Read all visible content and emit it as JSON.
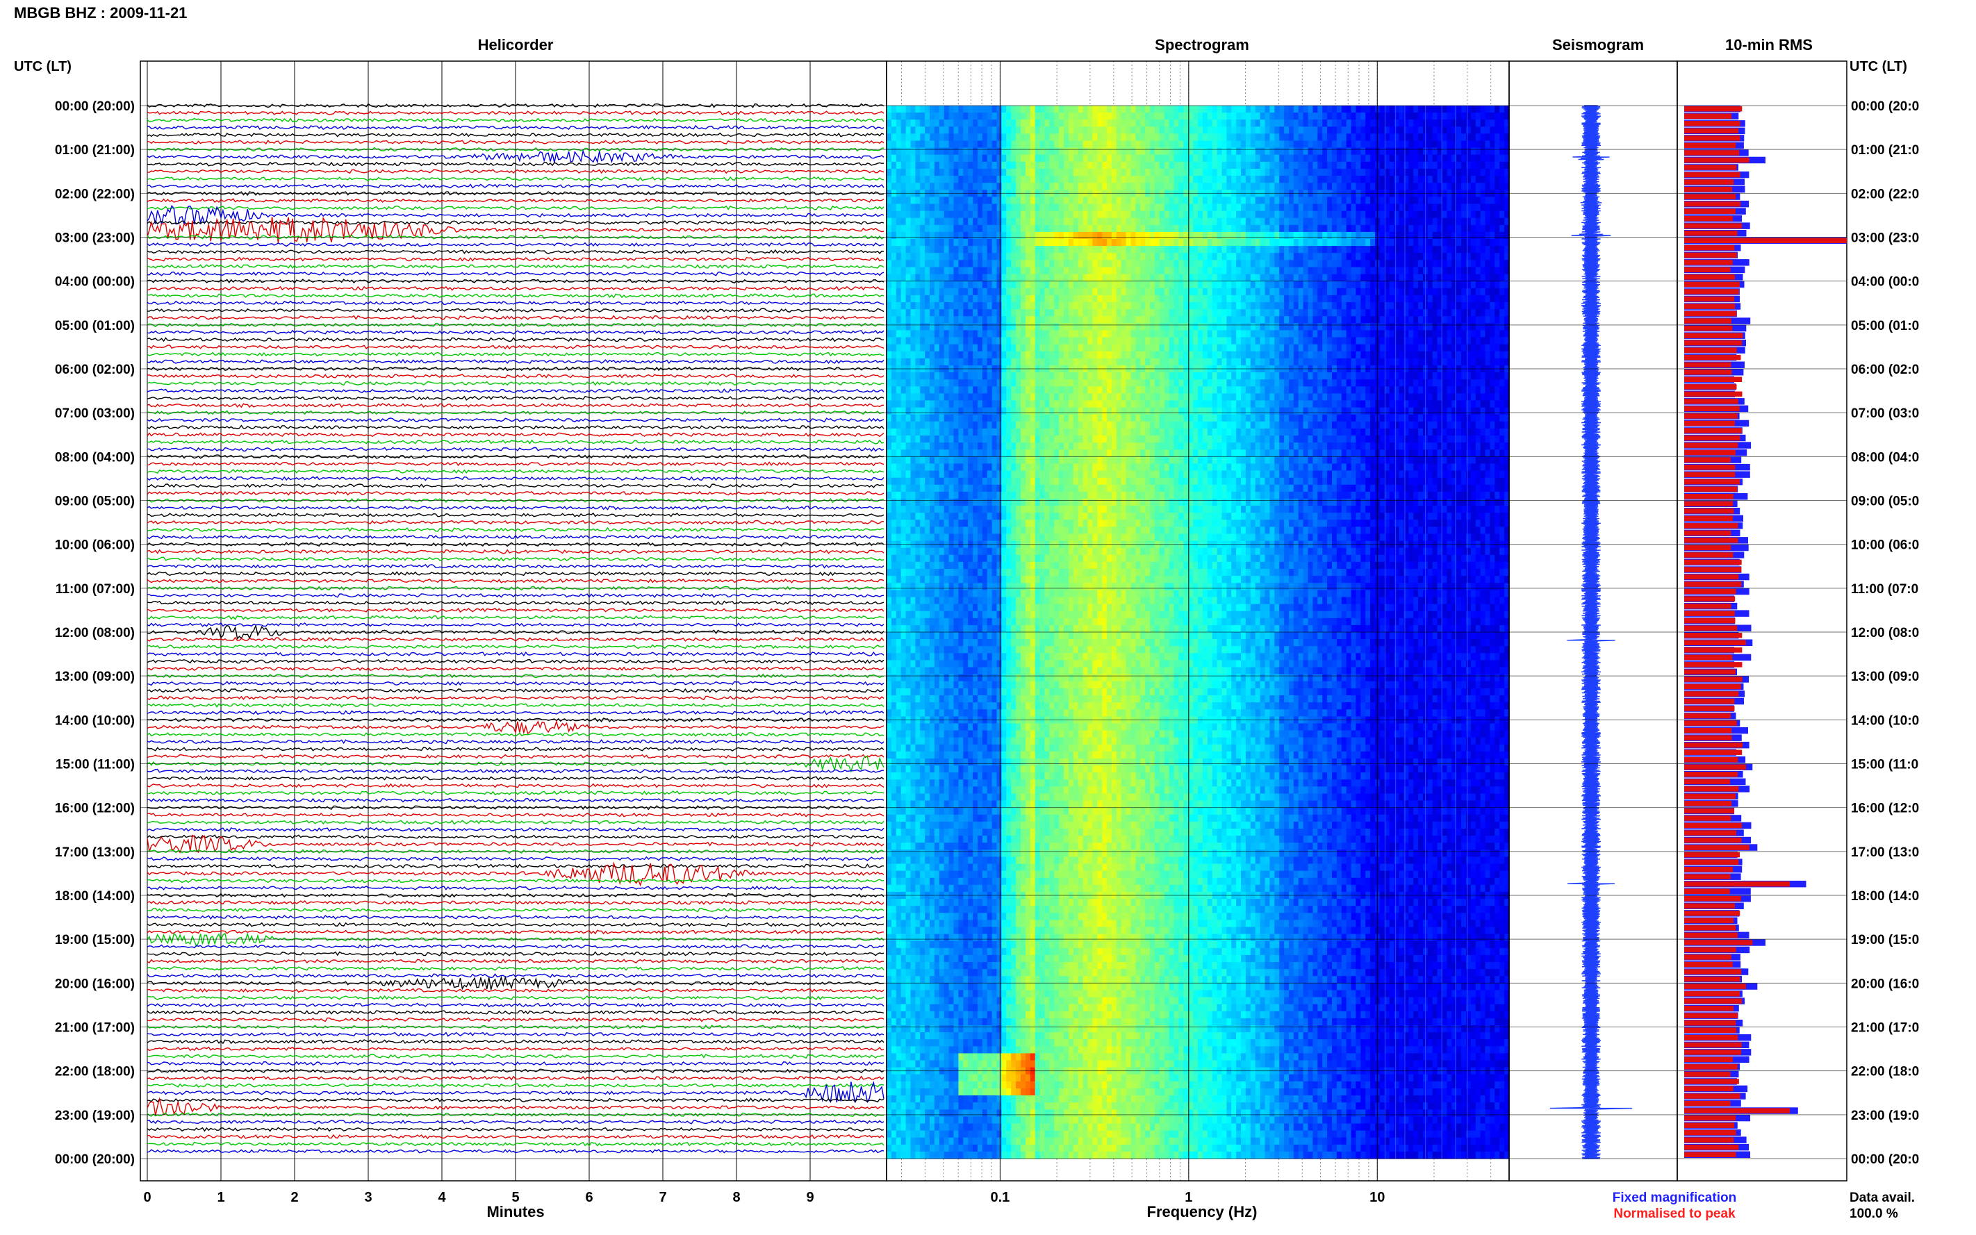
{
  "header": {
    "station": "MBGB BHZ : 2009-11-21",
    "utc_left": "UTC (LT)",
    "utc_right": "UTC (LT)"
  },
  "panels": {
    "helicorder": "Helicorder",
    "spectrogram": "Spectrogram",
    "seismogram": "Seismogram",
    "rms": "10-min RMS"
  },
  "legend": {
    "fixed": "Fixed magnification",
    "normalised": "Normalised to peak",
    "fixed_color": "#1f1fff",
    "normalised_color": "#ff1f1f",
    "data_avail_label": "Data avail.",
    "data_avail_value": "100.0 %"
  },
  "colors": {
    "trace_cycle": [
      "#000000",
      "#e00000",
      "#00c800",
      "#0000e0"
    ],
    "rms_fixed": "#2020ff",
    "rms_normalised": "#e01010"
  },
  "chart_data": [
    {
      "type": "line",
      "panel": "helicorder",
      "title": "Helicorder",
      "xlabel": "Minutes",
      "xticks": [
        0,
        1,
        2,
        3,
        4,
        5,
        6,
        7,
        8,
        9
      ],
      "xlim": [
        0,
        10
      ],
      "rows": 144,
      "events": [
        {
          "hour": 2.8,
          "minute": 1.8,
          "color": "#0000e0",
          "amp": 3.5,
          "width": 2.5
        },
        {
          "hour": 2.5,
          "minute": 0.5,
          "color": "#0000e0",
          "amp": 2.5,
          "width": 1.2
        },
        {
          "hour": 17.5,
          "minute": 6.8,
          "color": "#0000e0",
          "amp": 3.0,
          "width": 1.5
        },
        {
          "hour": 16.8,
          "minute": 0.5,
          "color": "#0000e0",
          "amp": 2.2,
          "width": 1.2
        },
        {
          "hour": 22.8,
          "minute": 0.2,
          "color": "#e00000",
          "amp": 2.5,
          "width": 0.8
        },
        {
          "hour": 22.5,
          "minute": 9.6,
          "color": "#000000",
          "amp": 3.0,
          "width": 0.8
        },
        {
          "hour": 15.0,
          "minute": 9.6,
          "color": "#0000e0",
          "amp": 1.8,
          "width": 0.8
        },
        {
          "hour": 12.0,
          "minute": 1.3,
          "color": "#e00000",
          "amp": 1.8,
          "width": 0.6
        },
        {
          "hour": 14.2,
          "minute": 5.2,
          "color": "#e00000",
          "amp": 1.6,
          "width": 0.8
        },
        {
          "hour": 19.0,
          "minute": 0.8,
          "color": "#0000e0",
          "amp": 1.6,
          "width": 1.0
        },
        {
          "hour": 20.0,
          "minute": 4.5,
          "color": "#000000",
          "amp": 1.4,
          "width": 1.5
        },
        {
          "hour": 1.2,
          "minute": 5.8,
          "color": "#00c800",
          "amp": 1.3,
          "width": 1.5
        }
      ]
    },
    {
      "type": "heatmap",
      "panel": "spectrogram",
      "title": "Spectrogram",
      "xlabel": "Frequency (Hz)",
      "xscale": "log",
      "xlim": [
        0.025,
        50
      ],
      "xtick_labels": [
        "0.1",
        "1",
        "10"
      ],
      "xtick_values": [
        0.1,
        1,
        10
      ],
      "colormap": "jet",
      "peak_frequency_hz": 0.35
    },
    {
      "type": "line",
      "panel": "seismogram",
      "title": "Seismogram",
      "spikes": [
        {
          "hour": 2.95,
          "amp": 0.95
        },
        {
          "hour": 17.75,
          "amp": 0.55
        },
        {
          "hour": 22.85,
          "amp": 0.6
        },
        {
          "hour": 12.2,
          "amp": 0.3
        },
        {
          "hour": 1.2,
          "amp": 0.2
        },
        {
          "hour": 2.2,
          "amp": 0.15
        }
      ]
    },
    {
      "type": "bar",
      "panel": "rms",
      "title": "10-min RMS",
      "orientation": "horizontal",
      "series": [
        {
          "name": "Fixed magnification",
          "baseline": 0.36
        },
        {
          "name": "Normalised to peak",
          "baseline": 0.33
        }
      ],
      "peaks": [
        {
          "hour": 3.0,
          "fixed": 1.0,
          "normalised": 1.0
        },
        {
          "hour": 1.2,
          "fixed": 0.5,
          "normalised": 0.4
        },
        {
          "hour": 17.7,
          "fixed": 0.75,
          "normalised": 0.65
        },
        {
          "hour": 22.8,
          "fixed": 0.7,
          "normalised": 0.65
        },
        {
          "hour": 16.9,
          "fixed": 0.45,
          "normalised": 0.4
        },
        {
          "hour": 19.0,
          "fixed": 0.5,
          "normalised": 0.42
        },
        {
          "hour": 15.0,
          "fixed": 0.42,
          "normalised": 0.38
        },
        {
          "hour": 12.2,
          "fixed": 0.42,
          "normalised": 0.38
        },
        {
          "hour": 14.5,
          "fixed": 0.4,
          "normalised": 0.36
        },
        {
          "hour": 20.0,
          "fixed": 0.45,
          "normalised": 0.38
        }
      ]
    }
  ],
  "time_labels": [
    "00:00 (20:00)",
    "01:00 (21:00)",
    "02:00 (22:00)",
    "03:00 (23:00)",
    "04:00 (00:00)",
    "05:00 (01:00)",
    "06:00 (02:00)",
    "07:00 (03:00)",
    "08:00 (04:00)",
    "09:00 (05:00)",
    "10:00 (06:00)",
    "11:00 (07:00)",
    "12:00 (08:00)",
    "13:00 (09:00)",
    "14:00 (10:00)",
    "15:00 (11:00)",
    "16:00 (12:00)",
    "17:00 (13:00)",
    "18:00 (14:00)",
    "19:00 (15:00)",
    "20:00 (16:00)",
    "21:00 (17:00)",
    "22:00 (18:00)",
    "23:00 (19:00)",
    "00:00 (20:00)"
  ],
  "time_labels_right": [
    "00:00 (20:0",
    "01:00 (21:0",
    "02:00 (22:0",
    "03:00 (23:0",
    "04:00 (00:0",
    "05:00 (01:0",
    "06:00 (02:0",
    "07:00 (03:0",
    "08:00 (04:0",
    "09:00 (05:0",
    "10:00 (06:0",
    "11:00 (07:0",
    "12:00 (08:0",
    "13:00 (09:0",
    "14:00 (10:0",
    "15:00 (11:0",
    "16:00 (12:0",
    "17:00 (13:0",
    "18:00 (14:0",
    "19:00 (15:0",
    "20:00 (16:0",
    "21:00 (17:0",
    "22:00 (18:0",
    "23:00 (19:0",
    "00:00 (20:0"
  ]
}
